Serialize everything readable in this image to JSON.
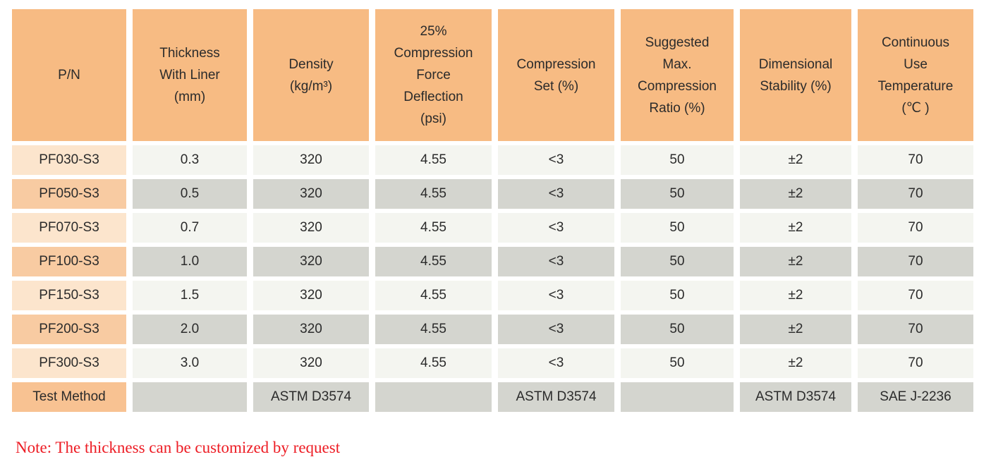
{
  "table": {
    "columns": [
      {
        "label": "P/N"
      },
      {
        "label": "Thickness\nWith Liner\n(mm)"
      },
      {
        "label": "Density\n(kg/m³)"
      },
      {
        "label": "25%\nCompression\nForce\nDeflection\n(psi)"
      },
      {
        "label": "Compression\nSet (%)"
      },
      {
        "label": "Suggested\nMax.\nCompression\nRatio (%)"
      },
      {
        "label": "Dimensional\nStability (%)"
      },
      {
        "label": "Continuous\nUse\nTemperature\n(℃ )"
      }
    ],
    "rows": [
      {
        "pn": "PF030-S3",
        "values": [
          "0.3",
          "320",
          "4.55",
          "<3",
          "50",
          "±2",
          "70"
        ]
      },
      {
        "pn": "PF050-S3",
        "values": [
          "0.5",
          "320",
          "4.55",
          "<3",
          "50",
          "±2",
          "70"
        ]
      },
      {
        "pn": "PF070-S3",
        "values": [
          "0.7",
          "320",
          "4.55",
          "<3",
          "50",
          "±2",
          "70"
        ]
      },
      {
        "pn": "PF100-S3",
        "values": [
          "1.0",
          "320",
          "4.55",
          "<3",
          "50",
          "±2",
          "70"
        ]
      },
      {
        "pn": "PF150-S3",
        "values": [
          "1.5",
          "320",
          "4.55",
          "<3",
          "50",
          "±2",
          "70"
        ]
      },
      {
        "pn": "PF200-S3",
        "values": [
          "2.0",
          "320",
          "4.55",
          "<3",
          "50",
          "±2",
          "70"
        ]
      },
      {
        "pn": "PF300-S3",
        "values": [
          "3.0",
          "320",
          "4.55",
          "<3",
          "50",
          "±2",
          "70"
        ]
      },
      {
        "pn": "Test Method",
        "is_test_method": true,
        "values": [
          "",
          "ASTM D3574",
          "",
          "ASTM D3574",
          "",
          "ASTM D3574",
          "SAE J-2236"
        ]
      }
    ]
  },
  "note": "Note: The thickness can be customized by request",
  "colors": {
    "header_bg": "#F7BB83",
    "row_pn_light": "#FCE5CD",
    "row_pn_dark": "#F8CBA2",
    "test_pn_bg": "#F8C292",
    "cell_light": "#F4F5F0",
    "cell_dark": "#D4D5CF",
    "note_red": "#ED1C24",
    "text_dark": "#2B2B2B"
  }
}
